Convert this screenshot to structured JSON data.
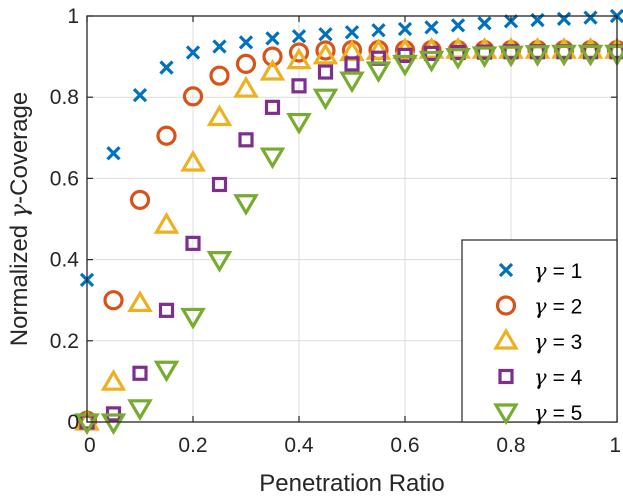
{
  "chart_data": {
    "type": "scatter",
    "xlabel": "Penetration Ratio",
    "ylabel_prefix": "Normalized ",
    "ylabel_symbol": "γ",
    "ylabel_suffix": "-Coverage",
    "xlim": [
      0,
      1
    ],
    "ylim": [
      0,
      1
    ],
    "xticks": [
      0,
      0.2,
      0.4,
      0.6,
      0.8,
      1
    ],
    "yticks": [
      0,
      0.2,
      0.4,
      0.6,
      0.8,
      1
    ],
    "xtick_labels": [
      "0",
      "0.2",
      "0.4",
      "0.6",
      "0.8",
      "1"
    ],
    "ytick_labels": [
      "0",
      "0.2",
      "0.4",
      "0.6",
      "0.8",
      "1"
    ],
    "grid": true,
    "legend_position": "bottom-right",
    "x": [
      0,
      0.05,
      0.1,
      0.15,
      0.2,
      0.25,
      0.3,
      0.35,
      0.4,
      0.45,
      0.5,
      0.55,
      0.6,
      0.65,
      0.7,
      0.75,
      0.8,
      0.85,
      0.9,
      0.95,
      1.0
    ],
    "series": [
      {
        "name": "γ = 1",
        "legend_symbol": "γ",
        "legend_value": "= 1",
        "marker": "x",
        "color": "#0072BD",
        "values": [
          0.35,
          0.662,
          0.805,
          0.873,
          0.91,
          0.925,
          0.935,
          0.945,
          0.95,
          0.955,
          0.96,
          0.965,
          0.968,
          0.972,
          0.977,
          0.982,
          0.987,
          0.99,
          0.993,
          0.996,
          1.0
        ]
      },
      {
        "name": "γ = 2",
        "legend_symbol": "γ",
        "legend_value": "= 2",
        "marker": "circle",
        "color": "#D95319",
        "values": [
          0.003,
          0.3,
          0.547,
          0.705,
          0.802,
          0.853,
          0.882,
          0.9,
          0.91,
          0.915,
          0.916,
          0.916,
          0.916,
          0.916,
          0.916,
          0.916,
          0.916,
          0.916,
          0.916,
          0.916,
          0.916
        ]
      },
      {
        "name": "γ = 3",
        "legend_symbol": "γ",
        "legend_value": "= 3",
        "marker": "triangle-up",
        "color": "#EDB120",
        "values": [
          0.0,
          0.098,
          0.292,
          0.485,
          0.638,
          0.75,
          0.82,
          0.862,
          0.89,
          0.902,
          0.91,
          0.913,
          0.915,
          0.916,
          0.916,
          0.916,
          0.916,
          0.916,
          0.916,
          0.916,
          0.916
        ]
      },
      {
        "name": "γ = 4",
        "legend_symbol": "γ",
        "legend_value": "= 4",
        "marker": "square",
        "color": "#7E2F8E",
        "values": [
          0.0,
          0.02,
          0.12,
          0.275,
          0.44,
          0.585,
          0.695,
          0.775,
          0.828,
          0.862,
          0.882,
          0.896,
          0.903,
          0.908,
          0.91,
          0.911,
          0.912,
          0.912,
          0.912,
          0.912,
          0.912
        ]
      },
      {
        "name": "γ = 5",
        "legend_symbol": "γ",
        "legend_value": "= 5",
        "marker": "triangle-down",
        "color": "#77AC30",
        "values": [
          0.0,
          0.0,
          0.035,
          0.13,
          0.26,
          0.4,
          0.54,
          0.655,
          0.74,
          0.8,
          0.842,
          0.867,
          0.883,
          0.893,
          0.9,
          0.904,
          0.906,
          0.907,
          0.908,
          0.908,
          0.908
        ]
      }
    ]
  }
}
